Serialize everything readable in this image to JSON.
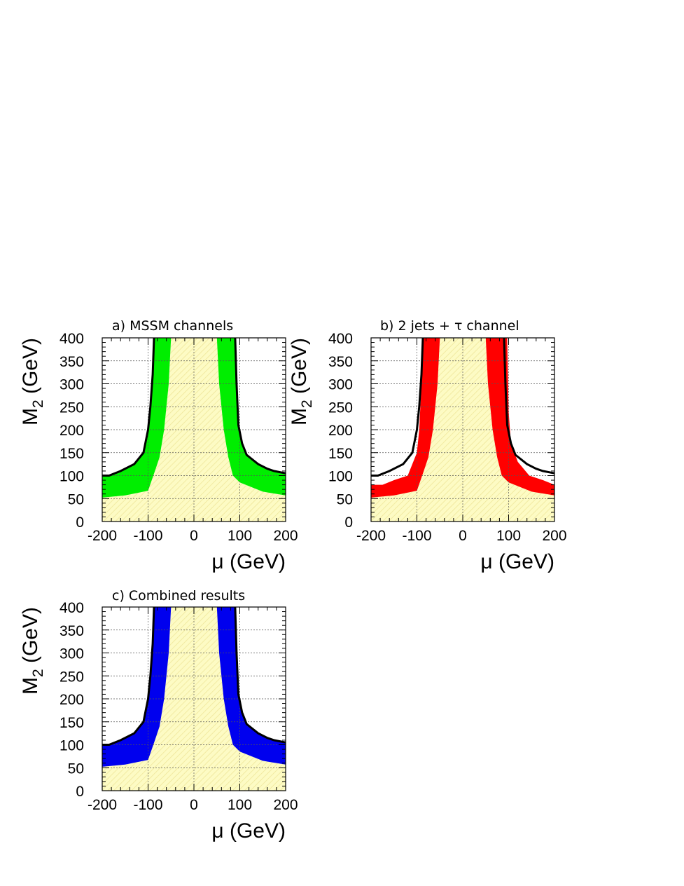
{
  "chart_data": [
    {
      "type": "area",
      "title": "a) MSSM channels",
      "xlabel": "μ (GeV)",
      "ylabel": "M2 (GeV)",
      "ylabel_sub": "2",
      "xlim": [
        -200,
        200
      ],
      "ylim": [
        0,
        400
      ],
      "x_ticks": [
        -200,
        -100,
        0,
        100,
        200
      ],
      "x_tick_labels": [
        "-200",
        "-100",
        "0",
        "100",
        "200"
      ],
      "y_ticks": [
        0,
        50,
        100,
        150,
        200,
        250,
        300,
        350,
        400
      ],
      "y_tick_labels": [
        "0",
        "50",
        "100",
        "150",
        "200",
        "250",
        "300",
        "350",
        "400"
      ],
      "grid": true,
      "band_color": "#00ee00",
      "excluded_region_color": "#fdfbc4",
      "excluded_left": {
        "x": [
          -200,
          -150,
          -100,
          -85,
          -75,
          -65,
          -55,
          -50
        ],
        "y": [
          52,
          57,
          67,
          110,
          140,
          200,
          300,
          400
        ]
      },
      "excluded_right": {
        "x": [
          50,
          55,
          65,
          75,
          85,
          100,
          150,
          200
        ],
        "y": [
          400,
          300,
          200,
          140,
          100,
          85,
          65,
          57
        ]
      },
      "limit_left": {
        "x": [
          -200,
          -185,
          -160,
          -130,
          -110,
          -100,
          -95,
          -90,
          -87
        ],
        "y": [
          100,
          100,
          110,
          125,
          150,
          200,
          250,
          320,
          400
        ]
      },
      "limit_right": {
        "x": [
          90,
          93,
          97,
          105,
          115,
          140,
          160,
          175,
          200
        ],
        "y": [
          400,
          300,
          210,
          170,
          145,
          125,
          115,
          110,
          105
        ]
      }
    },
    {
      "type": "area",
      "title": "b) 2 jets + τ channel",
      "xlabel": "μ (GeV)",
      "ylabel": "M2 (GeV)",
      "ylabel_sub": "2",
      "xlim": [
        -200,
        200
      ],
      "ylim": [
        0,
        400
      ],
      "x_ticks": [
        -200,
        -100,
        0,
        100,
        200
      ],
      "x_tick_labels": [
        "-200",
        "-100",
        "0",
        "100",
        "200"
      ],
      "y_ticks": [
        0,
        50,
        100,
        150,
        200,
        250,
        300,
        350,
        400
      ],
      "y_tick_labels": [
        "0",
        "50",
        "100",
        "150",
        "200",
        "250",
        "300",
        "350",
        "400"
      ],
      "grid": true,
      "band_color": "#ff0000",
      "excluded_region_color": "#fdfbc4",
      "excluded_left": {
        "x": [
          -200,
          -150,
          -100,
          -85,
          -75,
          -65,
          -55,
          -50
        ],
        "y": [
          52,
          57,
          67,
          110,
          140,
          200,
          300,
          400
        ]
      },
      "excluded_right": {
        "x": [
          50,
          55,
          65,
          75,
          85,
          100,
          150,
          200
        ],
        "y": [
          400,
          300,
          200,
          140,
          100,
          85,
          65,
          57
        ]
      },
      "band_left_outer": {
        "x": [
          -200,
          -175,
          -150,
          -120,
          -100,
          -95,
          -90,
          -87
        ],
        "y": [
          80,
          80,
          90,
          100,
          150,
          200,
          300,
          400
        ]
      },
      "band_right_outer": {
        "x": [
          97,
          100,
          105,
          120,
          145,
          175,
          200
        ],
        "y": [
          400,
          240,
          170,
          130,
          100,
          90,
          80
        ]
      },
      "limit_left": {
        "x": [
          -200,
          -185,
          -160,
          -130,
          -110,
          -100,
          -95,
          -90,
          -87
        ],
        "y": [
          100,
          100,
          110,
          125,
          150,
          200,
          250,
          320,
          400
        ]
      },
      "limit_right": {
        "x": [
          90,
          93,
          97,
          105,
          115,
          140,
          160,
          175,
          200
        ],
        "y": [
          400,
          300,
          210,
          170,
          145,
          125,
          115,
          110,
          105
        ]
      }
    },
    {
      "type": "area",
      "title": "c) Combined results",
      "xlabel": "μ (GeV)",
      "ylabel": "M2 (GeV)",
      "ylabel_sub": "2",
      "xlim": [
        -200,
        200
      ],
      "ylim": [
        0,
        400
      ],
      "x_ticks": [
        -200,
        -100,
        0,
        100,
        200
      ],
      "x_tick_labels": [
        "-200",
        "-100",
        "0",
        "100",
        "200"
      ],
      "y_ticks": [
        0,
        50,
        100,
        150,
        200,
        250,
        300,
        350,
        400
      ],
      "y_tick_labels": [
        "0",
        "50",
        "100",
        "150",
        "200",
        "250",
        "300",
        "350",
        "400"
      ],
      "grid": true,
      "band_color": "#0000ee",
      "excluded_region_color": "#fdfbc4",
      "excluded_left": {
        "x": [
          -200,
          -150,
          -100,
          -85,
          -75,
          -65,
          -55,
          -50
        ],
        "y": [
          52,
          57,
          67,
          110,
          140,
          200,
          300,
          400
        ]
      },
      "excluded_right": {
        "x": [
          50,
          55,
          65,
          75,
          85,
          100,
          150,
          200
        ],
        "y": [
          400,
          300,
          200,
          140,
          100,
          85,
          65,
          57
        ]
      },
      "limit_left": {
        "x": [
          -200,
          -185,
          -160,
          -130,
          -110,
          -100,
          -95,
          -90,
          -87
        ],
        "y": [
          100,
          100,
          110,
          125,
          150,
          200,
          250,
          320,
          400
        ]
      },
      "limit_right": {
        "x": [
          90,
          93,
          97,
          105,
          115,
          140,
          160,
          175,
          200
        ],
        "y": [
          400,
          300,
          210,
          170,
          145,
          125,
          115,
          110,
          105
        ]
      }
    }
  ]
}
